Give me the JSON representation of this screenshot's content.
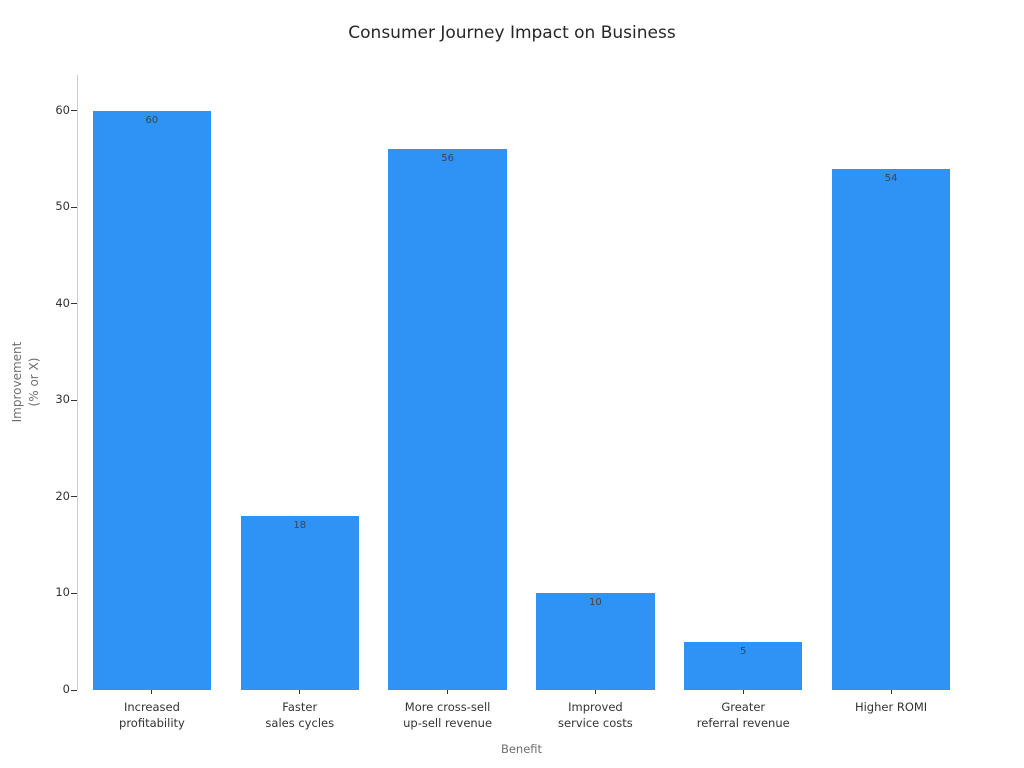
{
  "chart_data": {
    "type": "bar",
    "title": "Consumer Journey Impact on Business",
    "categories": [
      "Increased\nprofitability",
      "Faster\nsales cycles",
      "More cross-sell\nup-sell revenue",
      "Improved\nservice costs",
      "Greater\nreferral revenue",
      "Higher ROMI"
    ],
    "values": [
      60,
      18,
      56,
      10,
      5,
      54
    ],
    "bar_labels": [
      "60",
      "18",
      "56",
      "10",
      "5",
      "54"
    ],
    "xlabel": "Benefit",
    "ylabel_lines": [
      "Improvement",
      "(% or X)"
    ],
    "yticks": [
      0,
      10,
      20,
      30,
      40,
      50,
      60
    ],
    "ylim": [
      0,
      63.7
    ],
    "grid": false,
    "legend": false,
    "colors": {
      "bar": "#2e93f5",
      "title_text": "#262626",
      "tick_text": "#333333",
      "axis_label_text": "#6e6e6e",
      "value_label_text": "#3a4550",
      "spine": "#cccccc",
      "tick_mark": "#333333"
    }
  }
}
